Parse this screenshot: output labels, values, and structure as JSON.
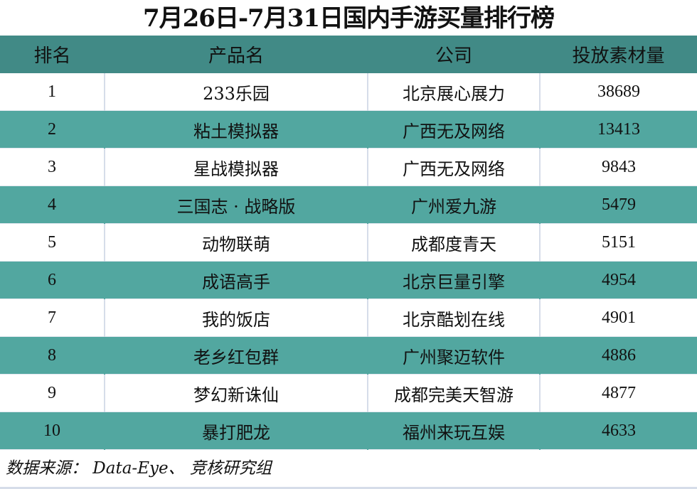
{
  "title": "7月26日-7月31日国内手游买量排行榜",
  "colors": {
    "header_bg": "#418a86",
    "alt_row_bg": "#52a7a0",
    "row_bg": "#ffffff"
  },
  "table": {
    "headers": [
      "排名",
      "产品名",
      "公司",
      "投放素材量"
    ],
    "rows": [
      [
        "1",
        "233乐园",
        "北京展心展力",
        "38689"
      ],
      [
        "2",
        "粘土模拟器",
        "广西无及网络",
        "13413"
      ],
      [
        "3",
        "星战模拟器",
        "广西无及网络",
        "9843"
      ],
      [
        "4",
        "三国志 · 战略版",
        "广州爱九游",
        "5479"
      ],
      [
        "5",
        "动物联萌",
        "成都度青天",
        "5151"
      ],
      [
        "6",
        "成语高手",
        "北京巨量引擎",
        "4954"
      ],
      [
        "7",
        "我的饭店",
        "北京酷划在线",
        "4901"
      ],
      [
        "8",
        "老乡红包群",
        "广州聚迈软件",
        "4886"
      ],
      [
        "9",
        "梦幻新诛仙",
        "成都完美天智游",
        "4877"
      ],
      [
        "10",
        "暴打肥龙",
        "福州来玩互娱",
        "4633"
      ]
    ]
  },
  "footer": "数据来源： Data-Eye、 竞核研究组"
}
